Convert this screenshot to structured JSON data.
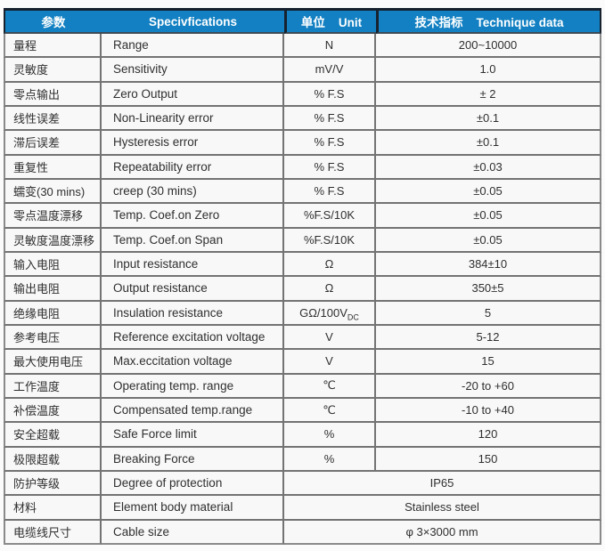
{
  "colors": {
    "header_bg": "#1280c2",
    "header_text": "#ffffff",
    "header_dark_border": "#17222e",
    "cell_bg": "#f8f8f8",
    "grid_border": "#737373",
    "body_text": "#2f2f2f",
    "page_bg": "#fbfbfb"
  },
  "table": {
    "header": {
      "columns": [
        {
          "label": "参数"
        },
        {
          "label": "Specivfications"
        },
        {
          "cn": "单位",
          "en": "Unit"
        },
        {
          "cn": "技术指标",
          "en": "Technique data"
        }
      ]
    },
    "rows": [
      {
        "cn": "量程",
        "en": "Range",
        "unit": "N",
        "value": "200~10000"
      },
      {
        "cn": "灵敏度",
        "en": "Sensitivity",
        "unit": "mV/V",
        "value": "1.0"
      },
      {
        "cn": "零点输出",
        "en": "Zero Output",
        "unit": "% F.S",
        "value": "± 2"
      },
      {
        "cn": "线性误差",
        "en": "Non-Linearity error",
        "unit": "% F.S",
        "value": "±0.1"
      },
      {
        "cn": "滞后误差",
        "en": "Hysteresis error",
        "unit": "% F.S",
        "value": "±0.1"
      },
      {
        "cn": "重复性",
        "en": "Repeatability error",
        "unit": "% F.S",
        "value": "±0.03"
      },
      {
        "cn": "蠕变(30 mins)",
        "en": "creep (30 mins)",
        "unit": "% F.S",
        "value": "±0.05"
      },
      {
        "cn": "零点温度漂移",
        "en": "Temp. Coef.on Zero",
        "unit": "%F.S/10K",
        "value": "±0.05"
      },
      {
        "cn": "灵敏度温度漂移",
        "en": "Temp. Coef.on Span",
        "unit": "%F.S/10K",
        "value": "±0.05"
      },
      {
        "cn": "输入电阻",
        "en": "Input resistance",
        "unit": "Ω",
        "value": "384±10"
      },
      {
        "cn": "输出电阻",
        "en": "Output resistance",
        "unit": "Ω",
        "value": "350±5"
      },
      {
        "cn": "绝缘电阻",
        "en": "Insulation resistance",
        "unit": "GΩ/100V",
        "unit_sub": "DC",
        "value": "5"
      },
      {
        "cn": "参考电压",
        "en": "Reference excitation voltage",
        "unit": "V",
        "value": "5-12"
      },
      {
        "cn": "最大使用电压",
        "en": "Max.eccitation voltage",
        "unit": "V",
        "value": "15"
      },
      {
        "cn": "工作温度",
        "en": "Operating temp. range",
        "unit": "℃",
        "value": "-20 to +60"
      },
      {
        "cn": "补偿温度",
        "en": "Compensated temp.range",
        "unit": "℃",
        "value": "-10 to +40"
      },
      {
        "cn": "安全超载",
        "en": "Safe Force limit",
        "unit": "%",
        "value": "120"
      },
      {
        "cn": "极限超载",
        "en": "Breaking Force",
        "unit": "%",
        "value": "150"
      },
      {
        "cn": "防护等级",
        "en": "Degree of protection",
        "merged": true,
        "value": "IP65"
      },
      {
        "cn": "材料",
        "en": "Element body material",
        "merged": true,
        "value": "Stainless steel"
      },
      {
        "cn": "电缆线尺寸",
        "en": "Cable size",
        "merged": true,
        "value": "φ 3×3000 mm"
      }
    ]
  }
}
